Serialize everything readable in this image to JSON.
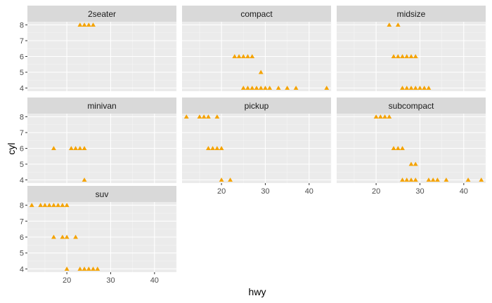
{
  "chart_data": {
    "type": "scatter",
    "xlabel": "hwy",
    "ylabel": "cyl",
    "xlim": [
      11,
      45
    ],
    "ylim": [
      3.8,
      8.2
    ],
    "x_ticks": [
      20,
      30,
      40
    ],
    "y_ticks": [
      4,
      5,
      6,
      7,
      8
    ],
    "grid": true,
    "point_shape": "triangle",
    "colors": {
      "point": "#F5A300",
      "panel_bg": "#EBEBEB",
      "strip_bg": "#D9D9D9",
      "grid_major": "#FFFFFF",
      "grid_minor": "#F5F5F5"
    },
    "facets": [
      {
        "label": "2seater",
        "points": [
          [
            23,
            8
          ],
          [
            24,
            8
          ],
          [
            25,
            8
          ],
          [
            26,
            8
          ]
        ]
      },
      {
        "label": "compact",
        "points": [
          [
            23,
            6
          ],
          [
            24,
            6
          ],
          [
            25,
            6
          ],
          [
            26,
            6
          ],
          [
            27,
            6
          ],
          [
            29,
            5
          ],
          [
            25,
            4
          ],
          [
            26,
            4
          ],
          [
            27,
            4
          ],
          [
            28,
            4
          ],
          [
            29,
            4
          ],
          [
            30,
            4
          ],
          [
            31,
            4
          ],
          [
            33,
            4
          ],
          [
            35,
            4
          ],
          [
            37,
            4
          ],
          [
            44,
            4
          ]
        ]
      },
      {
        "label": "midsize",
        "points": [
          [
            23,
            8
          ],
          [
            25,
            8
          ],
          [
            24,
            6
          ],
          [
            25,
            6
          ],
          [
            26,
            6
          ],
          [
            27,
            6
          ],
          [
            28,
            6
          ],
          [
            29,
            6
          ],
          [
            26,
            4
          ],
          [
            27,
            4
          ],
          [
            28,
            4
          ],
          [
            29,
            4
          ],
          [
            30,
            4
          ],
          [
            31,
            4
          ],
          [
            32,
            4
          ]
        ]
      },
      {
        "label": "minivan",
        "points": [
          [
            17,
            6
          ],
          [
            21,
            6
          ],
          [
            22,
            6
          ],
          [
            23,
            6
          ],
          [
            24,
            6
          ],
          [
            24,
            4
          ]
        ]
      },
      {
        "label": "pickup",
        "points": [
          [
            12,
            8
          ],
          [
            15,
            8
          ],
          [
            16,
            8
          ],
          [
            17,
            8
          ],
          [
            19,
            8
          ],
          [
            17,
            6
          ],
          [
            18,
            6
          ],
          [
            19,
            6
          ],
          [
            20,
            6
          ],
          [
            20,
            4
          ],
          [
            22,
            4
          ]
        ]
      },
      {
        "label": "subcompact",
        "points": [
          [
            20,
            8
          ],
          [
            21,
            8
          ],
          [
            22,
            8
          ],
          [
            23,
            8
          ],
          [
            24,
            6
          ],
          [
            25,
            6
          ],
          [
            26,
            6
          ],
          [
            28,
            5
          ],
          [
            29,
            5
          ],
          [
            26,
            4
          ],
          [
            27,
            4
          ],
          [
            28,
            4
          ],
          [
            29,
            4
          ],
          [
            32,
            4
          ],
          [
            33,
            4
          ],
          [
            34,
            4
          ],
          [
            36,
            4
          ],
          [
            41,
            4
          ],
          [
            44,
            4
          ]
        ]
      },
      {
        "label": "suv",
        "points": [
          [
            12,
            8
          ],
          [
            14,
            8
          ],
          [
            15,
            8
          ],
          [
            16,
            8
          ],
          [
            17,
            8
          ],
          [
            18,
            8
          ],
          [
            19,
            8
          ],
          [
            20,
            8
          ],
          [
            17,
            6
          ],
          [
            19,
            6
          ],
          [
            20,
            6
          ],
          [
            22,
            6
          ],
          [
            20,
            4
          ],
          [
            23,
            4
          ],
          [
            24,
            4
          ],
          [
            25,
            4
          ],
          [
            26,
            4
          ],
          [
            27,
            4
          ]
        ]
      }
    ]
  }
}
